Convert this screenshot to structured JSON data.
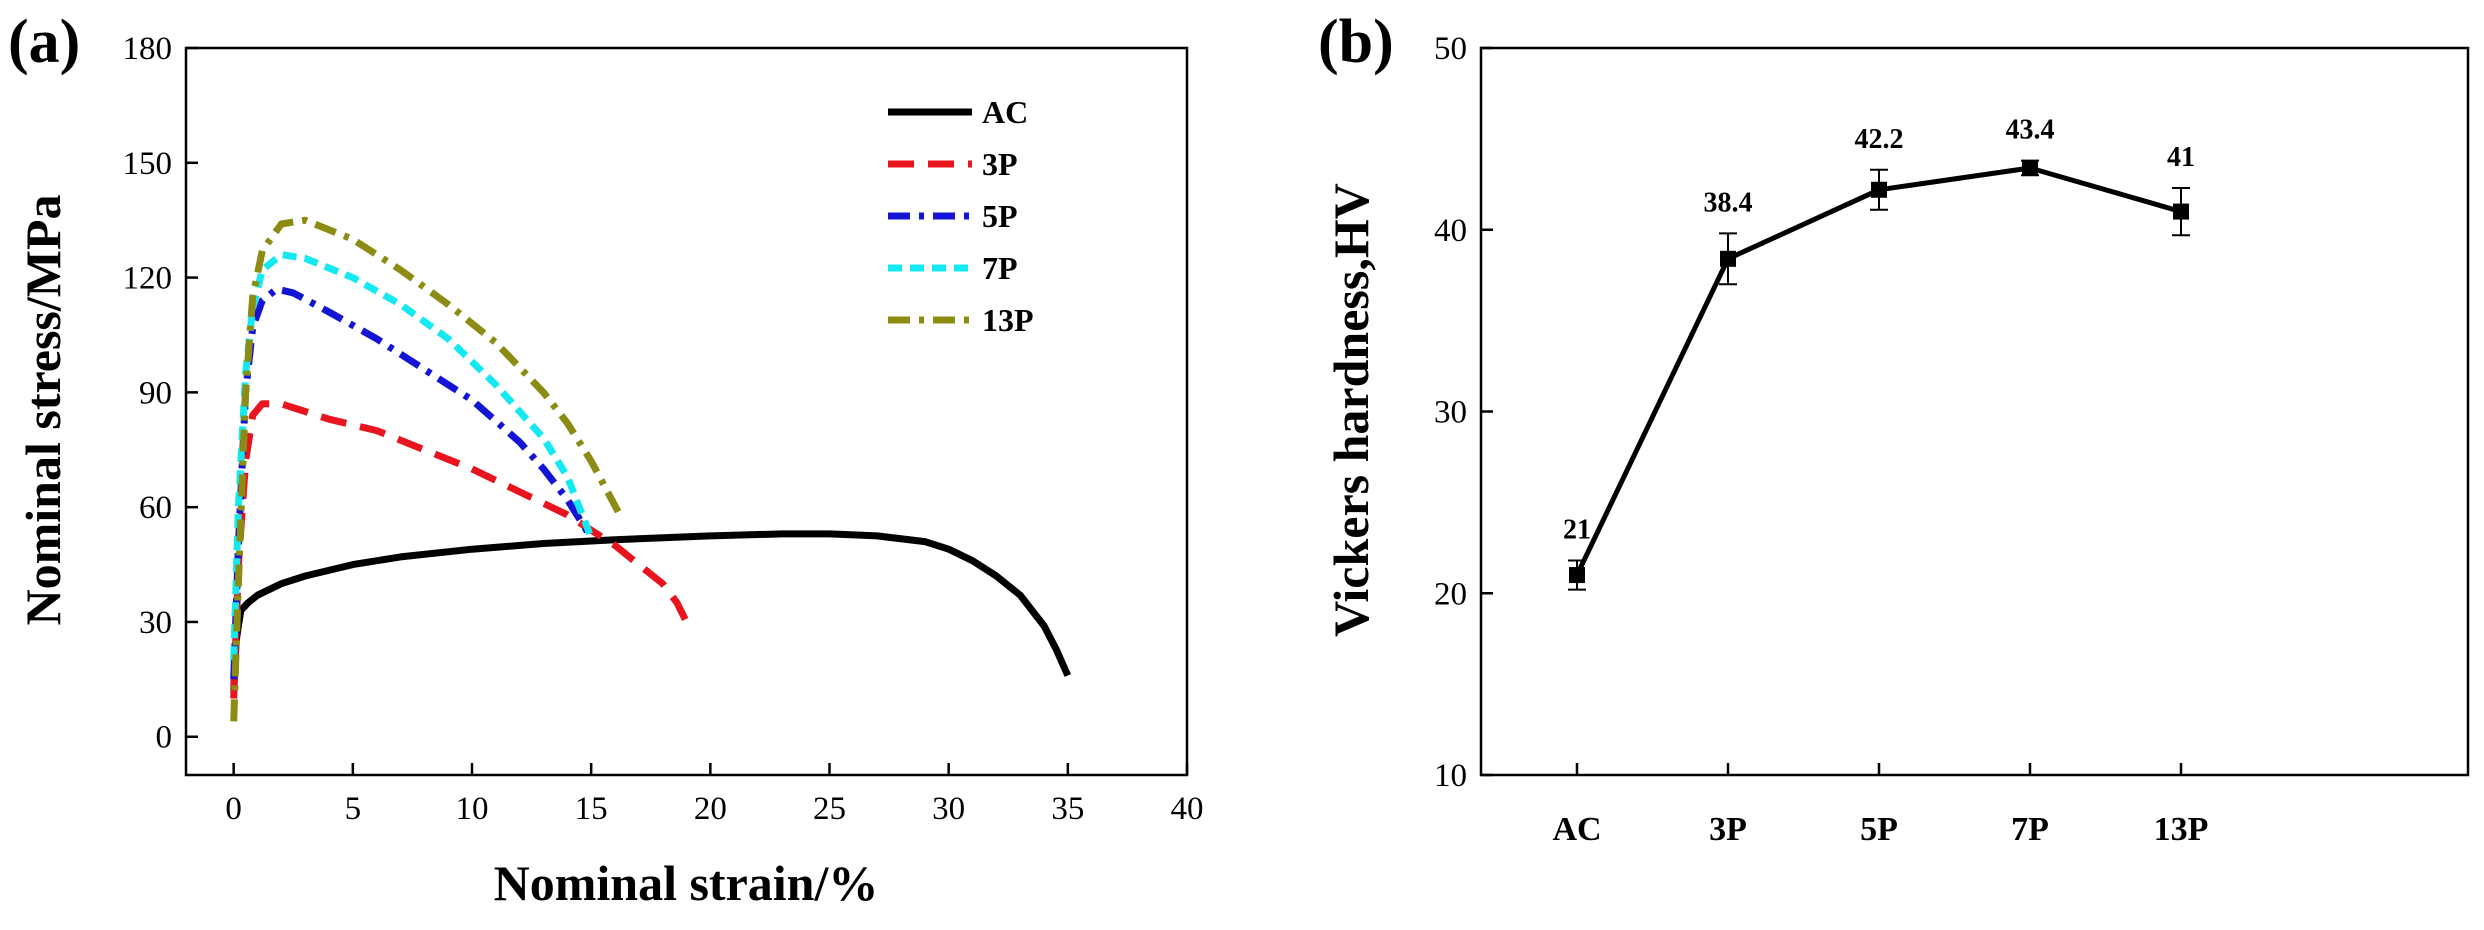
{
  "chart_data": [
    {
      "panel": "(a)",
      "type": "line",
      "xlabel": "Nominal strain/%",
      "ylabel": "Nominal stress/MPa",
      "xlim": [
        -2,
        40
      ],
      "ylim": [
        -10,
        180
      ],
      "xticks": [
        0,
        5,
        10,
        15,
        20,
        25,
        30,
        35,
        40
      ],
      "yticks": [
        0,
        30,
        60,
        90,
        120,
        150,
        180
      ],
      "legend_position": "top-right",
      "series": [
        {
          "name": "AC",
          "color": "#000000",
          "dash": "solid",
          "x": [
            0,
            0.1,
            0.3,
            0.6,
            1,
            2,
            3,
            5,
            7,
            10,
            13,
            16,
            20,
            23,
            25,
            27,
            29,
            30,
            31,
            32,
            33,
            34,
            34.5,
            35
          ],
          "y": [
            12,
            25,
            33,
            35,
            37,
            40,
            42,
            45,
            47,
            49,
            50.5,
            51.5,
            52.5,
            53,
            53,
            52.5,
            51,
            49,
            46,
            42,
            37,
            29,
            23,
            16
          ]
        },
        {
          "name": "3P",
          "color": "#e8141e",
          "dash": "long-dash",
          "x": [
            0,
            0.2,
            0.5,
            0.8,
            1.2,
            2,
            4,
            6,
            8,
            10,
            12,
            14,
            16,
            17,
            18,
            18.6,
            19
          ],
          "y": [
            10,
            45,
            72,
            84,
            87,
            87,
            83,
            80,
            75,
            70,
            64,
            58,
            50,
            45,
            40,
            35,
            30
          ]
        },
        {
          "name": "5P",
          "color": "#1414d4",
          "dash": "dash-dot",
          "x": [
            0,
            0.2,
            0.5,
            0.8,
            1.2,
            1.8,
            2.5,
            4,
            6,
            8,
            10,
            12,
            13,
            14,
            15
          ],
          "y": [
            15,
            50,
            90,
            107,
            114,
            117,
            116,
            111,
            104,
            96,
            88,
            77,
            70,
            62,
            52
          ]
        },
        {
          "name": "7P",
          "color": "#14e8f0",
          "dash": "short-dash",
          "x": [
            0,
            0.2,
            0.5,
            0.8,
            1.2,
            2,
            3,
            5,
            7,
            9,
            11,
            13,
            14,
            15
          ],
          "y": [
            20,
            60,
            95,
            112,
            122,
            126,
            125,
            120,
            113,
            104,
            92,
            78,
            68,
            52
          ]
        },
        {
          "name": "13P",
          "color": "#8c8c14",
          "dash": "dash-dot",
          "x": [
            0,
            0.2,
            0.5,
            0.8,
            1.2,
            2,
            3,
            5,
            7,
            9,
            11,
            13,
            14,
            15,
            15.6,
            16.2
          ],
          "y": [
            4,
            40,
            90,
            115,
            127,
            134,
            135,
            130,
            122,
            113,
            103,
            90,
            82,
            72,
            65,
            58
          ]
        }
      ]
    },
    {
      "panel": "(b)",
      "type": "line",
      "xlabel": "",
      "ylabel": "Vickers hardness,HV",
      "ylim": [
        10,
        50
      ],
      "yticks": [
        10,
        20,
        30,
        40,
        50
      ],
      "categories": [
        "AC",
        "3P",
        "5P",
        "7P",
        "13P"
      ],
      "values": [
        21,
        38.4,
        42.2,
        43.4,
        41
      ],
      "errors": [
        0.8,
        1.4,
        1.1,
        0.4,
        1.3
      ],
      "value_labels": [
        "21",
        "38.4",
        "42.2",
        "43.4",
        "41"
      ],
      "color": "#000000"
    }
  ]
}
